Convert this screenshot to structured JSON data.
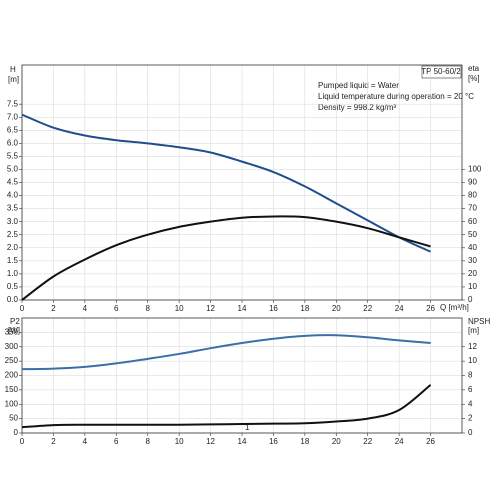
{
  "chart_data": [
    {
      "type": "line",
      "x": [
        0,
        2,
        4,
        6,
        8,
        10,
        12,
        14,
        16,
        18,
        20,
        22,
        24,
        26
      ],
      "xlim": [
        0,
        28
      ],
      "xticks": [
        0,
        2,
        4,
        6,
        8,
        10,
        12,
        14,
        16,
        18,
        20,
        22,
        24,
        26
      ],
      "xlabel": "Q [m³/h]",
      "ylabel": "H",
      "yunit": "[m]",
      "ylim": [
        0,
        9
      ],
      "yticks": [
        {
          "value": 0,
          "label": "0.0"
        },
        {
          "value": 0.5,
          "label": "0.5"
        },
        {
          "value": 1,
          "label": "1.0"
        },
        {
          "value": 1.5,
          "label": "1.5"
        },
        {
          "value": 2,
          "label": "2.0"
        },
        {
          "value": 2.5,
          "label": "2.5"
        },
        {
          "value": 3,
          "label": "3.0"
        },
        {
          "value": 3.5,
          "label": "3.5"
        },
        {
          "value": 4,
          "label": "4.0"
        },
        {
          "value": 4.5,
          "label": "4.5"
        },
        {
          "value": 5,
          "label": "5.0"
        },
        {
          "value": 5.5,
          "label": "5.5"
        },
        {
          "value": 6,
          "label": "6.0"
        },
        {
          "value": 6.5,
          "label": "6.5"
        },
        {
          "value": 7,
          "label": "7.0"
        },
        {
          "value": 7.5,
          "label": "7.5"
        }
      ],
      "y2label": "eta",
      "y2unit": "[%]",
      "y2lim": [
        0,
        180
      ],
      "y2ticks": [
        0,
        10,
        20,
        30,
        40,
        50,
        60,
        70,
        80,
        90,
        100
      ],
      "grid": true,
      "model": "TP 50-60/2",
      "info": [
        "Pumped liquid = Water",
        "Liquid temperature during operation = 20 °C",
        "Density = 998.2 kg/m³"
      ],
      "series": [
        {
          "color": "#1f4e8c",
          "values": [
            7.1,
            6.6,
            6.3,
            6.12,
            6.0,
            5.85,
            5.65,
            5.3,
            4.9,
            4.35,
            3.7,
            3.05,
            2.4,
            1.85
          ]
        },
        {
          "color": "#111111",
          "axis": "y2",
          "values": [
            0,
            18,
            31,
            42,
            50,
            56,
            60,
            63,
            64,
            63.5,
            60,
            55,
            48,
            41
          ]
        }
      ]
    },
    {
      "type": "line",
      "x": [
        0,
        2,
        4,
        6,
        8,
        10,
        12,
        14,
        16,
        18,
        20,
        22,
        24,
        26
      ],
      "xlim": [
        0,
        28
      ],
      "xticks": [
        0,
        2,
        4,
        6,
        8,
        10,
        12,
        14,
        16,
        18,
        20,
        22,
        24,
        26
      ],
      "ylabel": "P2",
      "yunit": "[W]",
      "ylim": [
        0,
        400
      ],
      "yticks": [
        0,
        50,
        100,
        150,
        200,
        250,
        300,
        350
      ],
      "y2label": "NPSH",
      "y2unit": "[m]",
      "y2lim": [
        0,
        16
      ],
      "y2ticks": [
        0,
        2,
        4,
        6,
        8,
        10,
        12
      ],
      "grid": true,
      "annotation": "1",
      "series": [
        {
          "color": "#3a6fa8",
          "values": [
            222,
            224,
            230,
            242,
            258,
            275,
            295,
            313,
            328,
            338,
            340,
            333,
            322,
            313
          ]
        },
        {
          "color": "#111111",
          "axis": "y2",
          "values": [
            0.8,
            1.1,
            1.15,
            1.15,
            1.15,
            1.15,
            1.2,
            1.25,
            1.3,
            1.35,
            1.6,
            2.0,
            3.2,
            6.7
          ]
        }
      ]
    }
  ]
}
